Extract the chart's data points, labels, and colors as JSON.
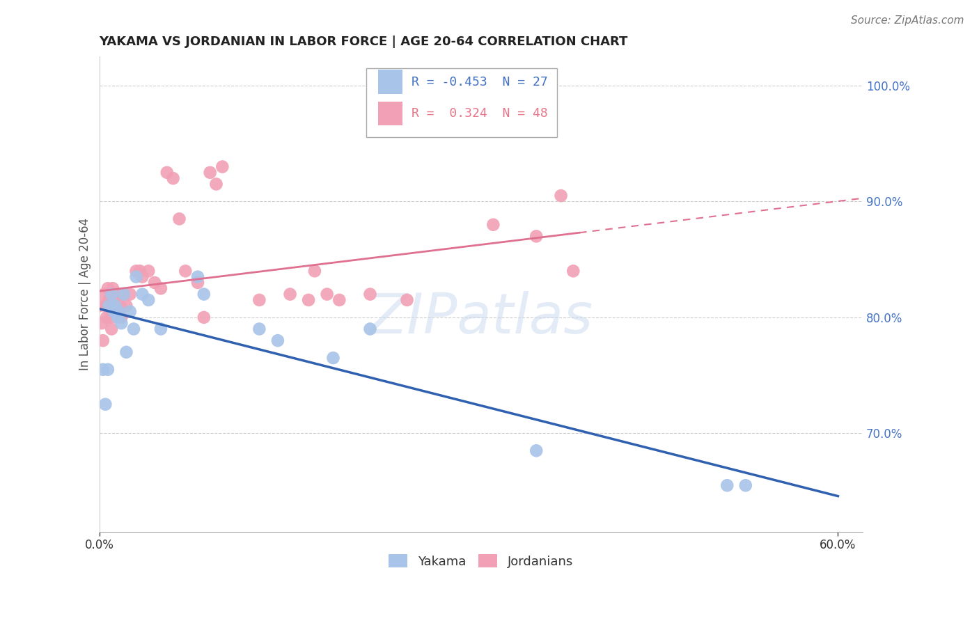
{
  "title": "YAKAMA VS JORDANIAN IN LABOR FORCE | AGE 20-64 CORRELATION CHART",
  "source": "Source: ZipAtlas.com",
  "ylabel": "In Labor Force | Age 20-64",
  "yakama_R": -0.453,
  "yakama_N": 27,
  "jordanian_R": 0.324,
  "jordanian_N": 48,
  "yakama_color": "#a8c4e8",
  "jordanian_color": "#f2a0b5",
  "yakama_line_color": "#3060b0",
  "jordanian_line_color": "#e07090",
  "background_color": "#ffffff",
  "grid_color": "#cccccc",
  "xlim": [
    0.0,
    0.62
  ],
  "ylim": [
    0.615,
    1.025
  ],
  "yticks": [
    0.7,
    0.8,
    0.9,
    1.0
  ],
  "xticks": [
    0.0,
    0.6
  ],
  "yakama_x": [
    0.003,
    0.005,
    0.007,
    0.008,
    0.01,
    0.012,
    0.013,
    0.015,
    0.016,
    0.018,
    0.02,
    0.022,
    0.025,
    0.028,
    0.03,
    0.035,
    0.04,
    0.05,
    0.08,
    0.085,
    0.13,
    0.145,
    0.19,
    0.22,
    0.355,
    0.51,
    0.525
  ],
  "yakama_y": [
    0.755,
    0.725,
    0.755,
    0.81,
    0.82,
    0.805,
    0.81,
    0.8,
    0.805,
    0.795,
    0.82,
    0.77,
    0.805,
    0.79,
    0.835,
    0.82,
    0.815,
    0.79,
    0.835,
    0.82,
    0.79,
    0.78,
    0.765,
    0.79,
    0.685,
    0.655,
    0.655
  ],
  "jordanian_x": [
    0.0,
    0.002,
    0.003,
    0.004,
    0.005,
    0.006,
    0.007,
    0.008,
    0.009,
    0.01,
    0.011,
    0.012,
    0.013,
    0.014,
    0.015,
    0.016,
    0.017,
    0.018,
    0.02,
    0.022,
    0.025,
    0.03,
    0.033,
    0.035,
    0.04,
    0.045,
    0.05,
    0.055,
    0.06,
    0.065,
    0.07,
    0.08,
    0.085,
    0.09,
    0.095,
    0.1,
    0.13,
    0.155,
    0.17,
    0.175,
    0.185,
    0.195,
    0.22,
    0.25,
    0.32,
    0.355,
    0.375,
    0.385
  ],
  "jordanian_y": [
    0.81,
    0.795,
    0.78,
    0.82,
    0.81,
    0.8,
    0.825,
    0.815,
    0.8,
    0.79,
    0.825,
    0.815,
    0.81,
    0.805,
    0.8,
    0.82,
    0.81,
    0.8,
    0.82,
    0.81,
    0.82,
    0.84,
    0.84,
    0.835,
    0.84,
    0.83,
    0.825,
    0.925,
    0.92,
    0.885,
    0.84,
    0.83,
    0.8,
    0.925,
    0.915,
    0.93,
    0.815,
    0.82,
    0.815,
    0.84,
    0.82,
    0.815,
    0.82,
    0.815,
    0.88,
    0.87,
    0.905,
    0.84
  ],
  "legend_R_color": "#4472c4",
  "legend_R2_color": "#e8758a",
  "tick_label_color": "#4472c4",
  "title_fontsize": 13,
  "source_fontsize": 11,
  "axis_label_fontsize": 12,
  "tick_fontsize": 12,
  "legend_fontsize": 13
}
